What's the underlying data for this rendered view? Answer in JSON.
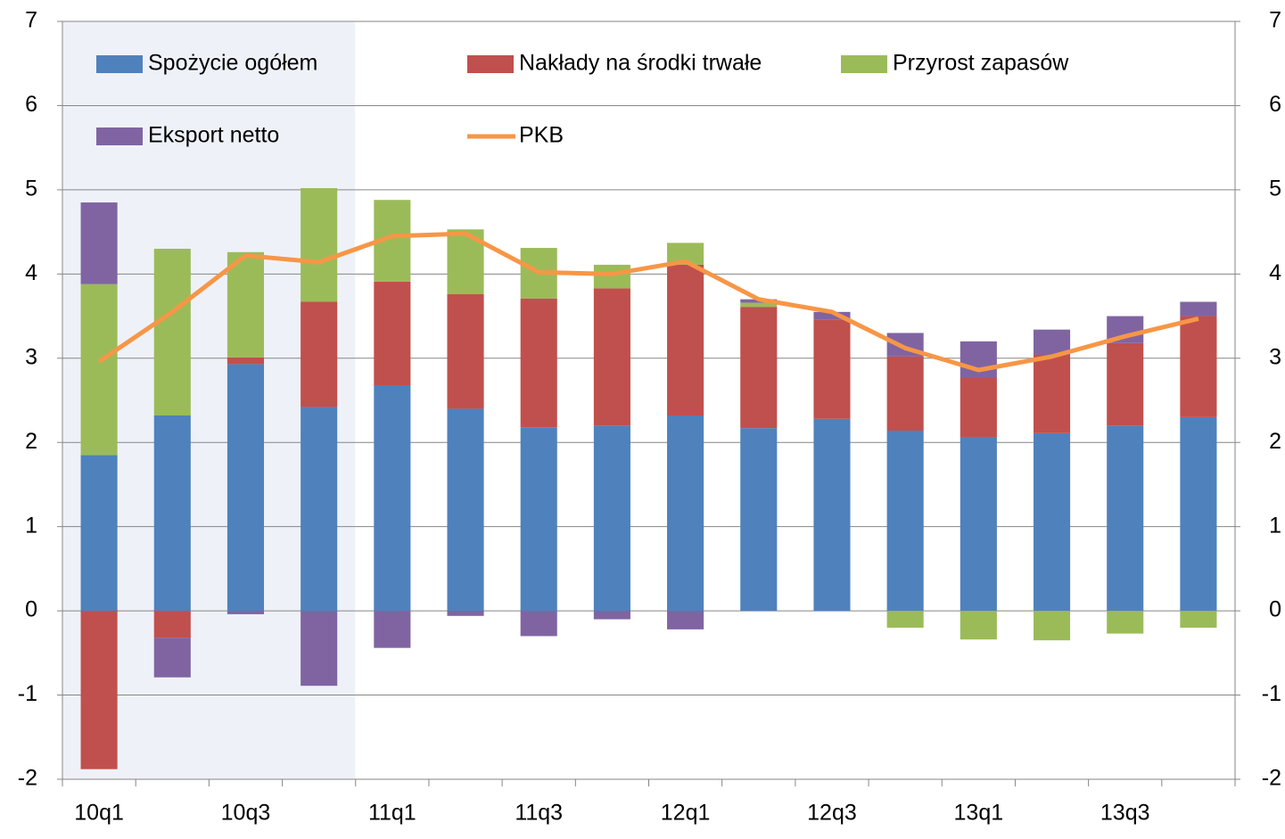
{
  "chart_data": {
    "type": "bar",
    "stacked": true,
    "categories": [
      "10q1",
      null,
      "10q3",
      null,
      "11q1",
      null,
      "11q3",
      null,
      "12q1",
      null,
      "12q3",
      null,
      "13q1",
      null,
      "13q3",
      null
    ],
    "series": [
      {
        "name": "Spożycie ogółem",
        "color": "#4f81bd",
        "values": [
          1.85,
          2.32,
          2.93,
          2.42,
          2.68,
          2.4,
          2.18,
          2.2,
          2.32,
          2.17,
          2.28,
          2.14,
          2.06,
          2.11,
          2.2,
          2.3
        ]
      },
      {
        "name": "Nakłady na środki trwałe",
        "color": "#c0504d",
        "values": [
          -1.88,
          -0.32,
          0.08,
          1.25,
          1.23,
          1.36,
          1.53,
          1.63,
          1.79,
          1.44,
          1.18,
          0.88,
          0.71,
          0.93,
          0.98,
          1.2
        ]
      },
      {
        "name": "Przyrost zapasów",
        "color": "#9bbb59",
        "values": [
          2.03,
          1.98,
          1.25,
          1.35,
          0.97,
          0.77,
          0.6,
          0.28,
          0.26,
          0.05,
          0,
          -0.2,
          -0.34,
          -0.35,
          -0.27,
          -0.2
        ]
      },
      {
        "name": "Eksport netto",
        "color": "#8064a2",
        "values": [
          0.97,
          -0.47,
          -0.04,
          -0.89,
          -0.44,
          -0.06,
          -0.3,
          -0.1,
          -0.22,
          0.04,
          0.09,
          0.28,
          0.43,
          0.3,
          0.32,
          0.17
        ]
      },
      {
        "name": "PKB",
        "color": "#f79646",
        "type": "line",
        "values": [
          2.96,
          3.55,
          4.22,
          4.14,
          4.45,
          4.48,
          4.02,
          4.0,
          4.15,
          3.7,
          3.55,
          3.12,
          2.86,
          3.02,
          3.26,
          3.47
        ]
      }
    ],
    "ylim": [
      -2,
      7
    ],
    "yticks": [
      -2,
      -1,
      0,
      1,
      2,
      3,
      4,
      5,
      6,
      7
    ],
    "y2lim": [
      -2,
      7
    ],
    "y2ticks": [
      -2,
      -1,
      0,
      1,
      2,
      3,
      4,
      5,
      6,
      7
    ],
    "grid": true,
    "legend": "top"
  }
}
